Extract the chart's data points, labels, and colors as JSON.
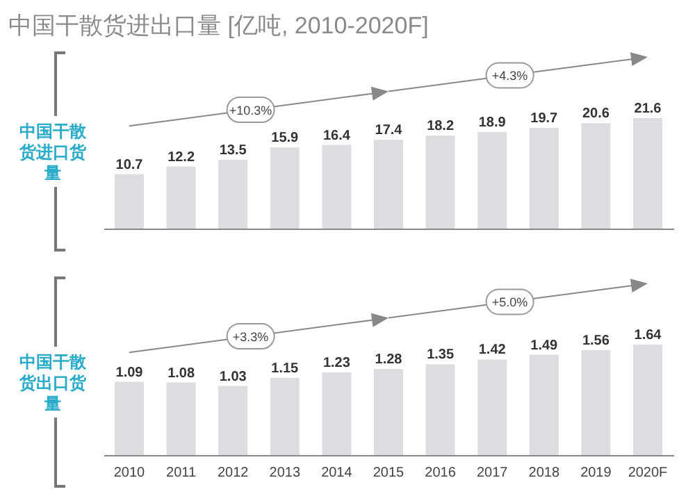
{
  "chart_data": [
    {
      "type": "bar",
      "title": "中国干散货进出口量 [亿吨, 2010-2020F]",
      "ylabel": "中国干散货进口货量",
      "categories": [
        null,
        null,
        null,
        null,
        null,
        null,
        null,
        null,
        null,
        null,
        null
      ],
      "values": [
        10.7,
        12.2,
        13.5,
        15.9,
        16.4,
        17.4,
        18.2,
        18.9,
        19.7,
        20.6,
        21.6
      ],
      "color": "#dcdde0",
      "data_labels": true,
      "annotations": [
        "+10.3%",
        "+4.3%"
      ]
    },
    {
      "type": "bar",
      "ylabel": "中国干散货出口货量",
      "categories": [
        "2010",
        "2011",
        "2012",
        "2013",
        "2014",
        "2015",
        "2016",
        "2017",
        "2018",
        "2019",
        "2020F"
      ],
      "values": [
        1.09,
        1.08,
        1.03,
        1.15,
        1.23,
        1.28,
        1.35,
        1.42,
        1.49,
        1.56,
        1.64
      ],
      "color": "#dcdde0",
      "data_labels": true,
      "annotations": [
        "+3.3%",
        "+5.0%"
      ]
    }
  ]
}
